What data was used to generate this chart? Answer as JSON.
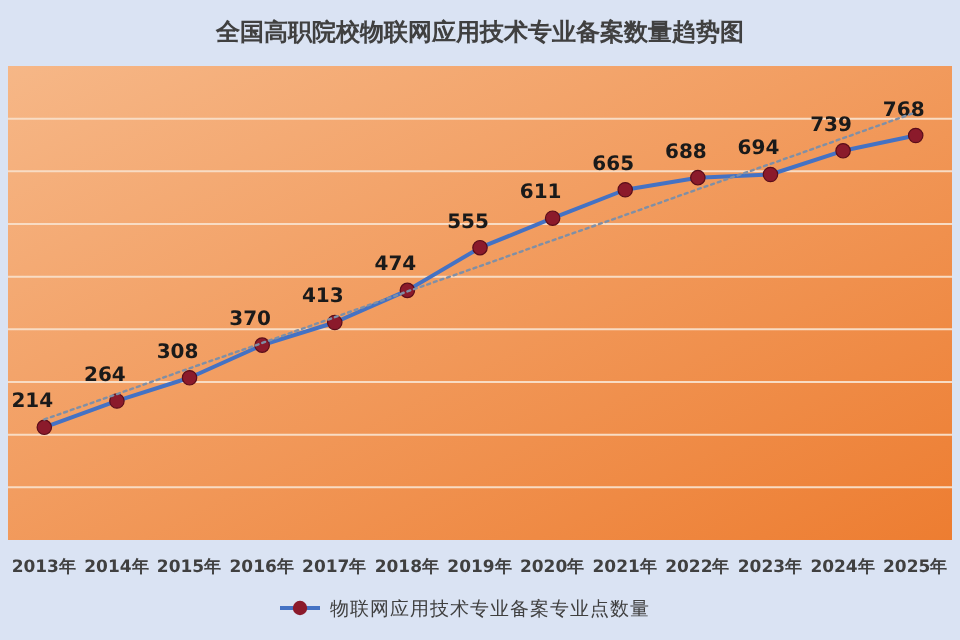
{
  "chart_data": {
    "type": "line",
    "title": "全国高职院校物联网应用技术专业备案数量趋势图",
    "categories": [
      "2013年",
      "2014年",
      "2015年",
      "2016年",
      "2017年",
      "2018年",
      "2019年",
      "2020年",
      "2021年",
      "2022年",
      "2023年",
      "2024年",
      "2025年"
    ],
    "series": [
      {
        "name": "物联网应用技术专业备案专业点数量",
        "color": "#4472c4",
        "marker": "circle",
        "line_style": "solid",
        "data_labels": true,
        "values": [
          214,
          264,
          308,
          370,
          413,
          474,
          555,
          611,
          665,
          688,
          694,
          739,
          768
        ]
      },
      {
        "type": "line",
        "color": "#7f8fa6",
        "line_style": "dotted",
        "marker": "none",
        "values": [
          229,
          277,
          326,
          374,
          423,
          472,
          520,
          569,
          617,
          666,
          714,
          763,
          812
        ]
      }
    ],
    "ylim": [
      0,
      900
    ],
    "yticks": [
      {
        "value": 0,
        "label": null
      },
      {
        "value": 100,
        "label": null
      },
      {
        "value": 200,
        "label": null
      },
      {
        "value": 300,
        "label": null
      },
      {
        "value": 400,
        "label": null
      },
      {
        "value": 500,
        "label": null
      },
      {
        "value": 600,
        "label": null
      },
      {
        "value": 700,
        "label": null
      },
      {
        "value": 800,
        "label": null
      },
      {
        "value": 900,
        "label": null
      }
    ],
    "tick_labels": "x",
    "grid": "y",
    "legend": "bottom"
  }
}
